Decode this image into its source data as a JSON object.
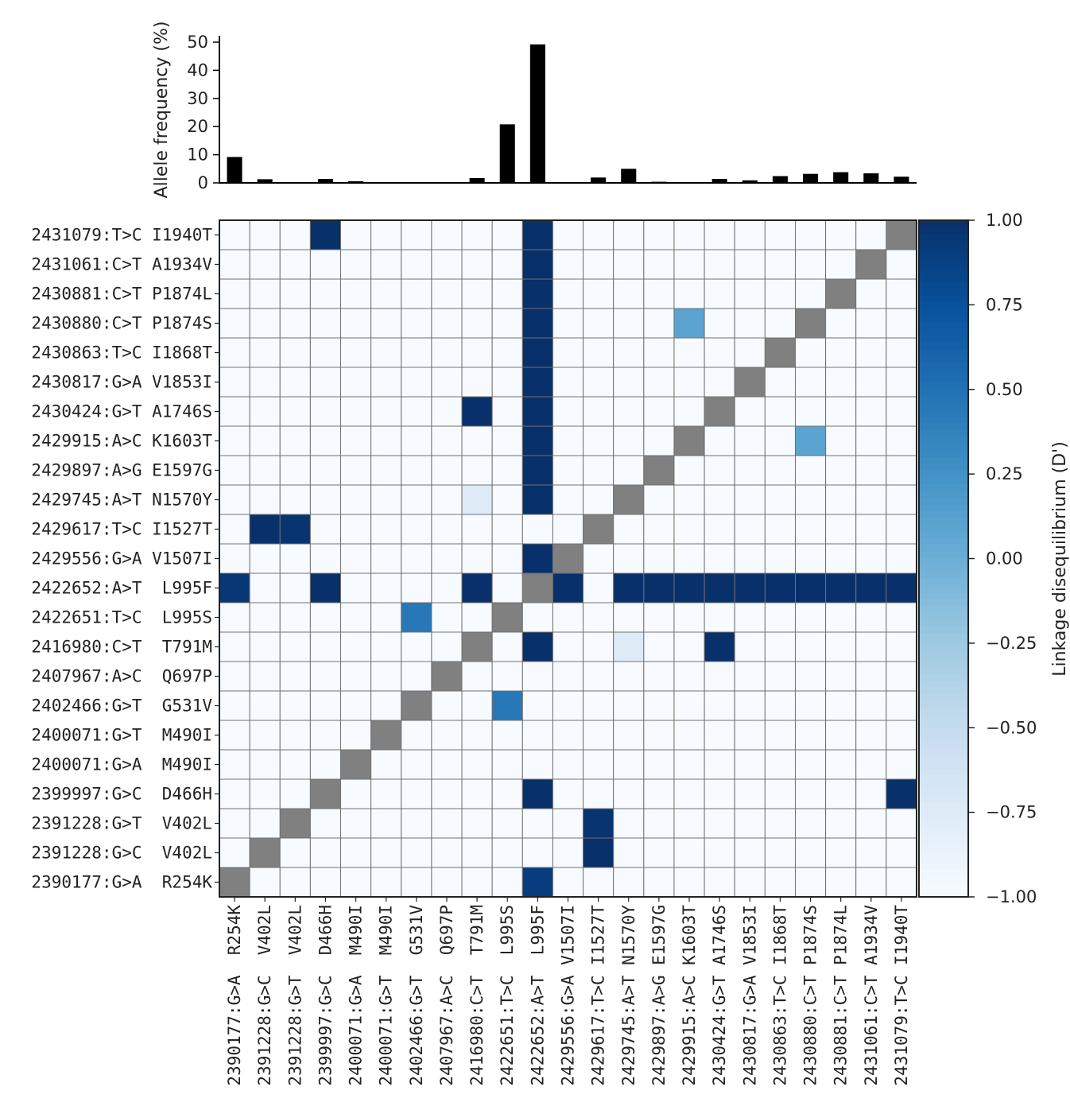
{
  "chart_data": [
    {
      "type": "bar",
      "ylabel": "Allele frequency (%)",
      "ylim": [
        0,
        52
      ],
      "yticks": [
        0,
        10,
        20,
        30,
        40,
        50
      ],
      "categories": [
        "2390177:G>A  R254K",
        "2391228:G>C  V402L",
        "2391228:G>T  V402L",
        "2399997:G>C  D466H",
        "2400071:G>A  M490I",
        "2400071:G>T  M490I",
        "2402466:G>T  G531V",
        "2407967:A>C  Q697P",
        "2416980:C>T  T791M",
        "2422651:T>C  L995S",
        "2422652:A>T  L995F",
        "2429556:G>A V1507I",
        "2429617:T>C I1527T",
        "2429745:A>T N1570Y",
        "2429897:A>G E1597G",
        "2429915:A>C K1603T",
        "2430424:G>T A1746S",
        "2430817:G>A V1853I",
        "2430863:T>C I1868T",
        "2430880:C>T P1874S",
        "2430881:C>T P1874L",
        "2431061:C>T A1934V",
        "2431079:T>C I1940T"
      ],
      "values": [
        9.2,
        1.3,
        0.1,
        1.4,
        0.6,
        0.2,
        0.2,
        0.1,
        1.7,
        20.8,
        49.2,
        0.1,
        1.9,
        5.0,
        0.4,
        0.1,
        1.4,
        0.9,
        2.4,
        3.2,
        3.8,
        3.4,
        2.2
      ]
    },
    {
      "type": "heatmap",
      "colorbar_label": "Linkage disequilibrium (D')",
      "colorbar_ticks": [
        "1.00",
        "0.75",
        "0.50",
        "0.25",
        "0.00",
        "−0.25",
        "−0.50",
        "−0.75",
        "−1.00"
      ],
      "vmin": -1.0,
      "vmax": 1.0,
      "colormap": "Blues",
      "diagonal_color": "#808080",
      "row_order": "bottom-to-top, same as categories",
      "x_ticklabels": [
        "2390177:G>A  R254K",
        "2391228:G>C  V402L",
        "2391228:G>T  V402L",
        "2399997:G>C  D466H",
        "2400071:G>A  M490I",
        "2400071:G>T  M490I",
        "2402466:G>T  G531V",
        "2407967:A>C  Q697P",
        "2416980:C>T  T791M",
        "2422651:T>C  L995S",
        "2422652:A>T  L995F",
        "2429556:G>A V1507I",
        "2429617:T>C I1527T",
        "2429745:A>T N1570Y",
        "2429897:A>G E1597G",
        "2429915:A>C K1603T",
        "2430424:G>T A1746S",
        "2430817:G>A V1853I",
        "2430863:T>C I1868T",
        "2430880:C>T P1874S",
        "2430881:C>T P1874L",
        "2431061:C>T A1934V",
        "2431079:T>C I1940T"
      ],
      "y_ticklabels": [
        "2390177:G>A  R254K",
        "2391228:G>C  V402L",
        "2391228:G>T  V402L",
        "2399997:G>C  D466H",
        "2400071:G>A  M490I",
        "2400071:G>T  M490I",
        "2402466:G>T  G531V",
        "2407967:A>C  Q697P",
        "2416980:C>T  T791M",
        "2422651:T>C  L995S",
        "2422652:A>T  L995F",
        "2429556:G>A V1507I",
        "2429617:T>C I1527T",
        "2429745:A>T N1570Y",
        "2429897:A>G E1597G",
        "2429915:A>C K1603T",
        "2430424:G>T A1746S",
        "2430817:G>A V1853I",
        "2430863:T>C I1868T",
        "2430880:C>T P1874S",
        "2430881:C>T P1874L",
        "2431061:C>T A1934V",
        "2431079:T>C I1940T"
      ],
      "default_value": -1.0,
      "cells": [
        {
          "row": 0,
          "col": 10,
          "value": 0.9
        },
        {
          "row": 1,
          "col": 12,
          "value": 1.0
        },
        {
          "row": 2,
          "col": 12,
          "value": 0.97
        },
        {
          "row": 3,
          "col": 10,
          "value": 1.0
        },
        {
          "row": 3,
          "col": 22,
          "value": 1.0
        },
        {
          "row": 6,
          "col": 9,
          "value": 0.45
        },
        {
          "row": 8,
          "col": 10,
          "value": 1.0
        },
        {
          "row": 8,
          "col": 13,
          "value": -0.75
        },
        {
          "row": 8,
          "col": 16,
          "value": 1.0
        },
        {
          "row": 9,
          "col": 6,
          "value": 0.45
        },
        {
          "row": 10,
          "col": 0,
          "value": 0.95
        },
        {
          "row": 10,
          "col": 3,
          "value": 1.0
        },
        {
          "row": 10,
          "col": 8,
          "value": 1.0
        },
        {
          "row": 10,
          "col": 11,
          "value": 1.0
        },
        {
          "row": 10,
          "col": 13,
          "value": 1.0
        },
        {
          "row": 10,
          "col": 14,
          "value": 1.0
        },
        {
          "row": 10,
          "col": 15,
          "value": 1.0
        },
        {
          "row": 10,
          "col": 16,
          "value": 1.0
        },
        {
          "row": 10,
          "col": 17,
          "value": 1.0
        },
        {
          "row": 10,
          "col": 18,
          "value": 1.0
        },
        {
          "row": 10,
          "col": 19,
          "value": 1.0
        },
        {
          "row": 10,
          "col": 20,
          "value": 1.0
        },
        {
          "row": 10,
          "col": 21,
          "value": 1.0
        },
        {
          "row": 10,
          "col": 22,
          "value": 1.0
        },
        {
          "row": 11,
          "col": 10,
          "value": 1.0
        },
        {
          "row": 12,
          "col": 1,
          "value": 1.0
        },
        {
          "row": 12,
          "col": 2,
          "value": 0.97
        },
        {
          "row": 13,
          "col": 8,
          "value": -0.75
        },
        {
          "row": 13,
          "col": 10,
          "value": 1.0
        },
        {
          "row": 14,
          "col": 10,
          "value": 1.0
        },
        {
          "row": 15,
          "col": 10,
          "value": 1.0
        },
        {
          "row": 15,
          "col": 19,
          "value": 0.1
        },
        {
          "row": 16,
          "col": 8,
          "value": 1.0
        },
        {
          "row": 16,
          "col": 10,
          "value": 1.0
        },
        {
          "row": 17,
          "col": 10,
          "value": 1.0
        },
        {
          "row": 18,
          "col": 10,
          "value": 1.0
        },
        {
          "row": 19,
          "col": 10,
          "value": 1.0
        },
        {
          "row": 19,
          "col": 15,
          "value": 0.1
        },
        {
          "row": 20,
          "col": 10,
          "value": 1.0
        },
        {
          "row": 21,
          "col": 10,
          "value": 1.0
        },
        {
          "row": 22,
          "col": 3,
          "value": 1.0
        },
        {
          "row": 22,
          "col": 10,
          "value": 1.0
        }
      ]
    }
  ]
}
